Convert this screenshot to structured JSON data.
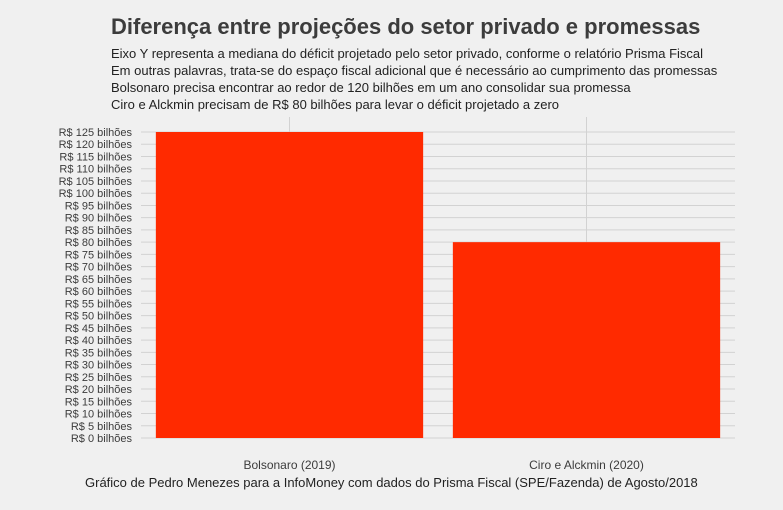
{
  "title": "Diferença entre projeções do setor privado e promessas",
  "subtitle_lines": [
    "Eixo Y representa a mediana do déficit projetado pelo setor privado, conforme o relatório Prisma Fiscal",
    "Em outras palavras, trata-se do espaço fiscal adicional que é necessário ao cumprimento das promessas",
    "Bolsonaro precisa encontrar ao redor de 120 bilhões em um ano consolidar sua promessa",
    "Ciro e Alckmin precisam de R$ 80 bilhões para levar o déficit projetado a zero"
  ],
  "caption": "Gráfico de Pedro Menezes para a InfoMoney com dados do Prisma Fiscal (SPE/Fazenda) de Agosto/2018",
  "colors": {
    "bar": "#ff2a00",
    "grid": "#d2d2d2",
    "background": "#f0f0f0"
  },
  "chart_data": {
    "type": "bar",
    "categories": [
      "Bolsonaro (2019)",
      "Ciro e Alckmin (2020)"
    ],
    "values": [
      125,
      80
    ],
    "ylim": [
      0,
      125
    ],
    "yticks": [
      0,
      5,
      10,
      15,
      20,
      25,
      30,
      35,
      40,
      45,
      50,
      55,
      60,
      65,
      70,
      75,
      80,
      85,
      90,
      95,
      100,
      105,
      110,
      115,
      120,
      125
    ],
    "ytick_labels": [
      "R$ 0 bilhões",
      "R$ 5 bilhões",
      "R$ 10 bilhões",
      "R$ 15 bilhões",
      "R$ 20 bilhões",
      "R$ 25 bilhões",
      "R$ 30 bilhões",
      "R$ 35 bilhões",
      "R$ 40 bilhões",
      "R$ 45 bilhões",
      "R$ 50 bilhões",
      "R$ 55 bilhões",
      "R$ 60 bilhões",
      "R$ 65 bilhões",
      "R$ 70 bilhões",
      "R$ 75 bilhões",
      "R$ 80 bilhões",
      "R$ 85 bilhões",
      "R$ 90 bilhões",
      "R$ 95 bilhões",
      "R$ 100 bilhões",
      "R$ 105 bilhões",
      "R$ 110 bilhões",
      "R$ 115 bilhões",
      "R$ 120 bilhões",
      "R$ 125 bilhões"
    ],
    "grid": true,
    "legend": "none"
  }
}
